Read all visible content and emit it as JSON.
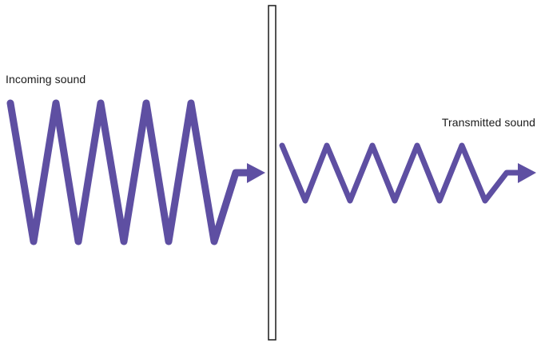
{
  "labels": {
    "incoming": "Incoming sound",
    "transmitted": "Transmitted sound"
  },
  "colors": {
    "wave": "#5e4fa2",
    "barrier_stroke": "#1a1a1a",
    "barrier_fill": "#ffffff",
    "text": "#1a1a1a"
  },
  "incoming_wave": {
    "peaks": 5,
    "amplitude": "large"
  },
  "transmitted_wave": {
    "peaks": 5,
    "amplitude": "small"
  }
}
